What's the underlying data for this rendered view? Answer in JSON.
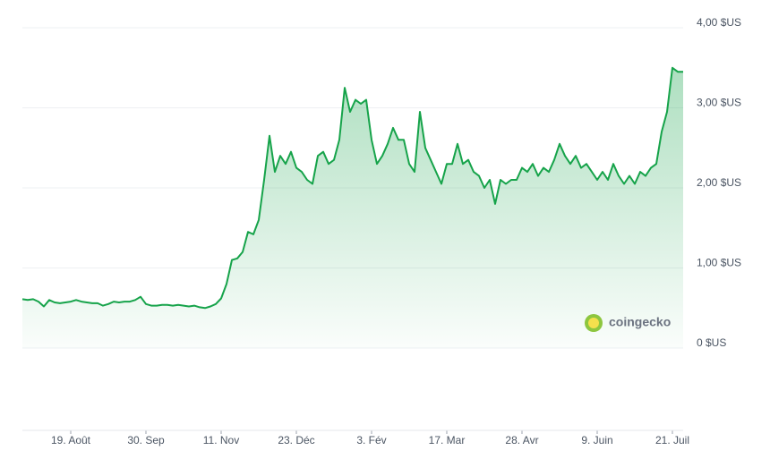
{
  "chart_data": {
    "type": "area",
    "color": "#16a34a",
    "grid": true,
    "watermark": "coingecko",
    "categories": [
      null,
      null,
      null,
      null,
      null,
      null,
      null,
      null,
      null,
      "19. Août",
      null,
      null,
      null,
      null,
      null,
      null,
      null,
      null,
      null,
      null,
      null,
      null,
      null,
      "30. Sep",
      null,
      null,
      null,
      null,
      null,
      null,
      null,
      null,
      null,
      null,
      null,
      null,
      null,
      "11. Nov",
      null,
      null,
      null,
      null,
      null,
      null,
      null,
      null,
      null,
      null,
      null,
      null,
      null,
      "23. Déc",
      null,
      null,
      null,
      null,
      null,
      null,
      null,
      null,
      null,
      null,
      null,
      null,
      null,
      "3. Fév",
      null,
      null,
      null,
      null,
      null,
      null,
      null,
      null,
      null,
      null,
      null,
      null,
      null,
      "17. Mar",
      null,
      null,
      null,
      null,
      null,
      null,
      null,
      null,
      null,
      null,
      null,
      null,
      null,
      "28. Avr",
      null,
      null,
      null,
      null,
      null,
      null,
      null,
      null,
      null,
      null,
      null,
      null,
      null,
      "9. Juin",
      null,
      null,
      null,
      null,
      null,
      null,
      null,
      null,
      null,
      null,
      null,
      null,
      null,
      "21. Juil",
      null,
      null
    ],
    "values": [
      0.61,
      0.6,
      0.61,
      0.58,
      0.52,
      0.6,
      0.57,
      0.56,
      0.57,
      0.58,
      0.6,
      0.58,
      0.57,
      0.56,
      0.56,
      0.53,
      0.55,
      0.58,
      0.57,
      0.58,
      0.58,
      0.6,
      0.64,
      0.55,
      0.53,
      0.53,
      0.54,
      0.54,
      0.53,
      0.54,
      0.53,
      0.52,
      0.53,
      0.51,
      0.5,
      0.52,
      0.55,
      0.62,
      0.8,
      1.1,
      1.12,
      1.2,
      1.45,
      1.42,
      1.6,
      2.1,
      2.65,
      2.2,
      2.4,
      2.3,
      2.45,
      2.25,
      2.2,
      2.1,
      2.05,
      2.4,
      2.45,
      2.3,
      2.35,
      2.6,
      3.25,
      2.95,
      3.1,
      3.05,
      3.1,
      2.6,
      2.3,
      2.4,
      2.55,
      2.75,
      2.6,
      2.6,
      2.3,
      2.2,
      2.95,
      2.5,
      2.35,
      2.2,
      2.05,
      2.3,
      2.3,
      2.55,
      2.3,
      2.35,
      2.2,
      2.15,
      2.0,
      2.1,
      1.8,
      2.1,
      2.05,
      2.1,
      2.1,
      2.25,
      2.2,
      2.3,
      2.15,
      2.25,
      2.2,
      2.35,
      2.55,
      2.4,
      2.3,
      2.4,
      2.25,
      2.3,
      2.2,
      2.1,
      2.2,
      2.1,
      2.3,
      2.15,
      2.05,
      2.15,
      2.05,
      2.2,
      2.15,
      2.25,
      2.3,
      2.7,
      2.95,
      3.5,
      3.45,
      3.45
    ],
    "ylim": [
      0,
      4
    ],
    "yticks": [
      {
        "value": 0,
        "label": "0 $US"
      },
      {
        "value": 1,
        "label": "1,00 $US"
      },
      {
        "value": 2,
        "label": "2,00 $US"
      },
      {
        "value": 3,
        "label": "3,00 $US"
      },
      {
        "value": 4,
        "label": "4,00 $US"
      }
    ]
  }
}
